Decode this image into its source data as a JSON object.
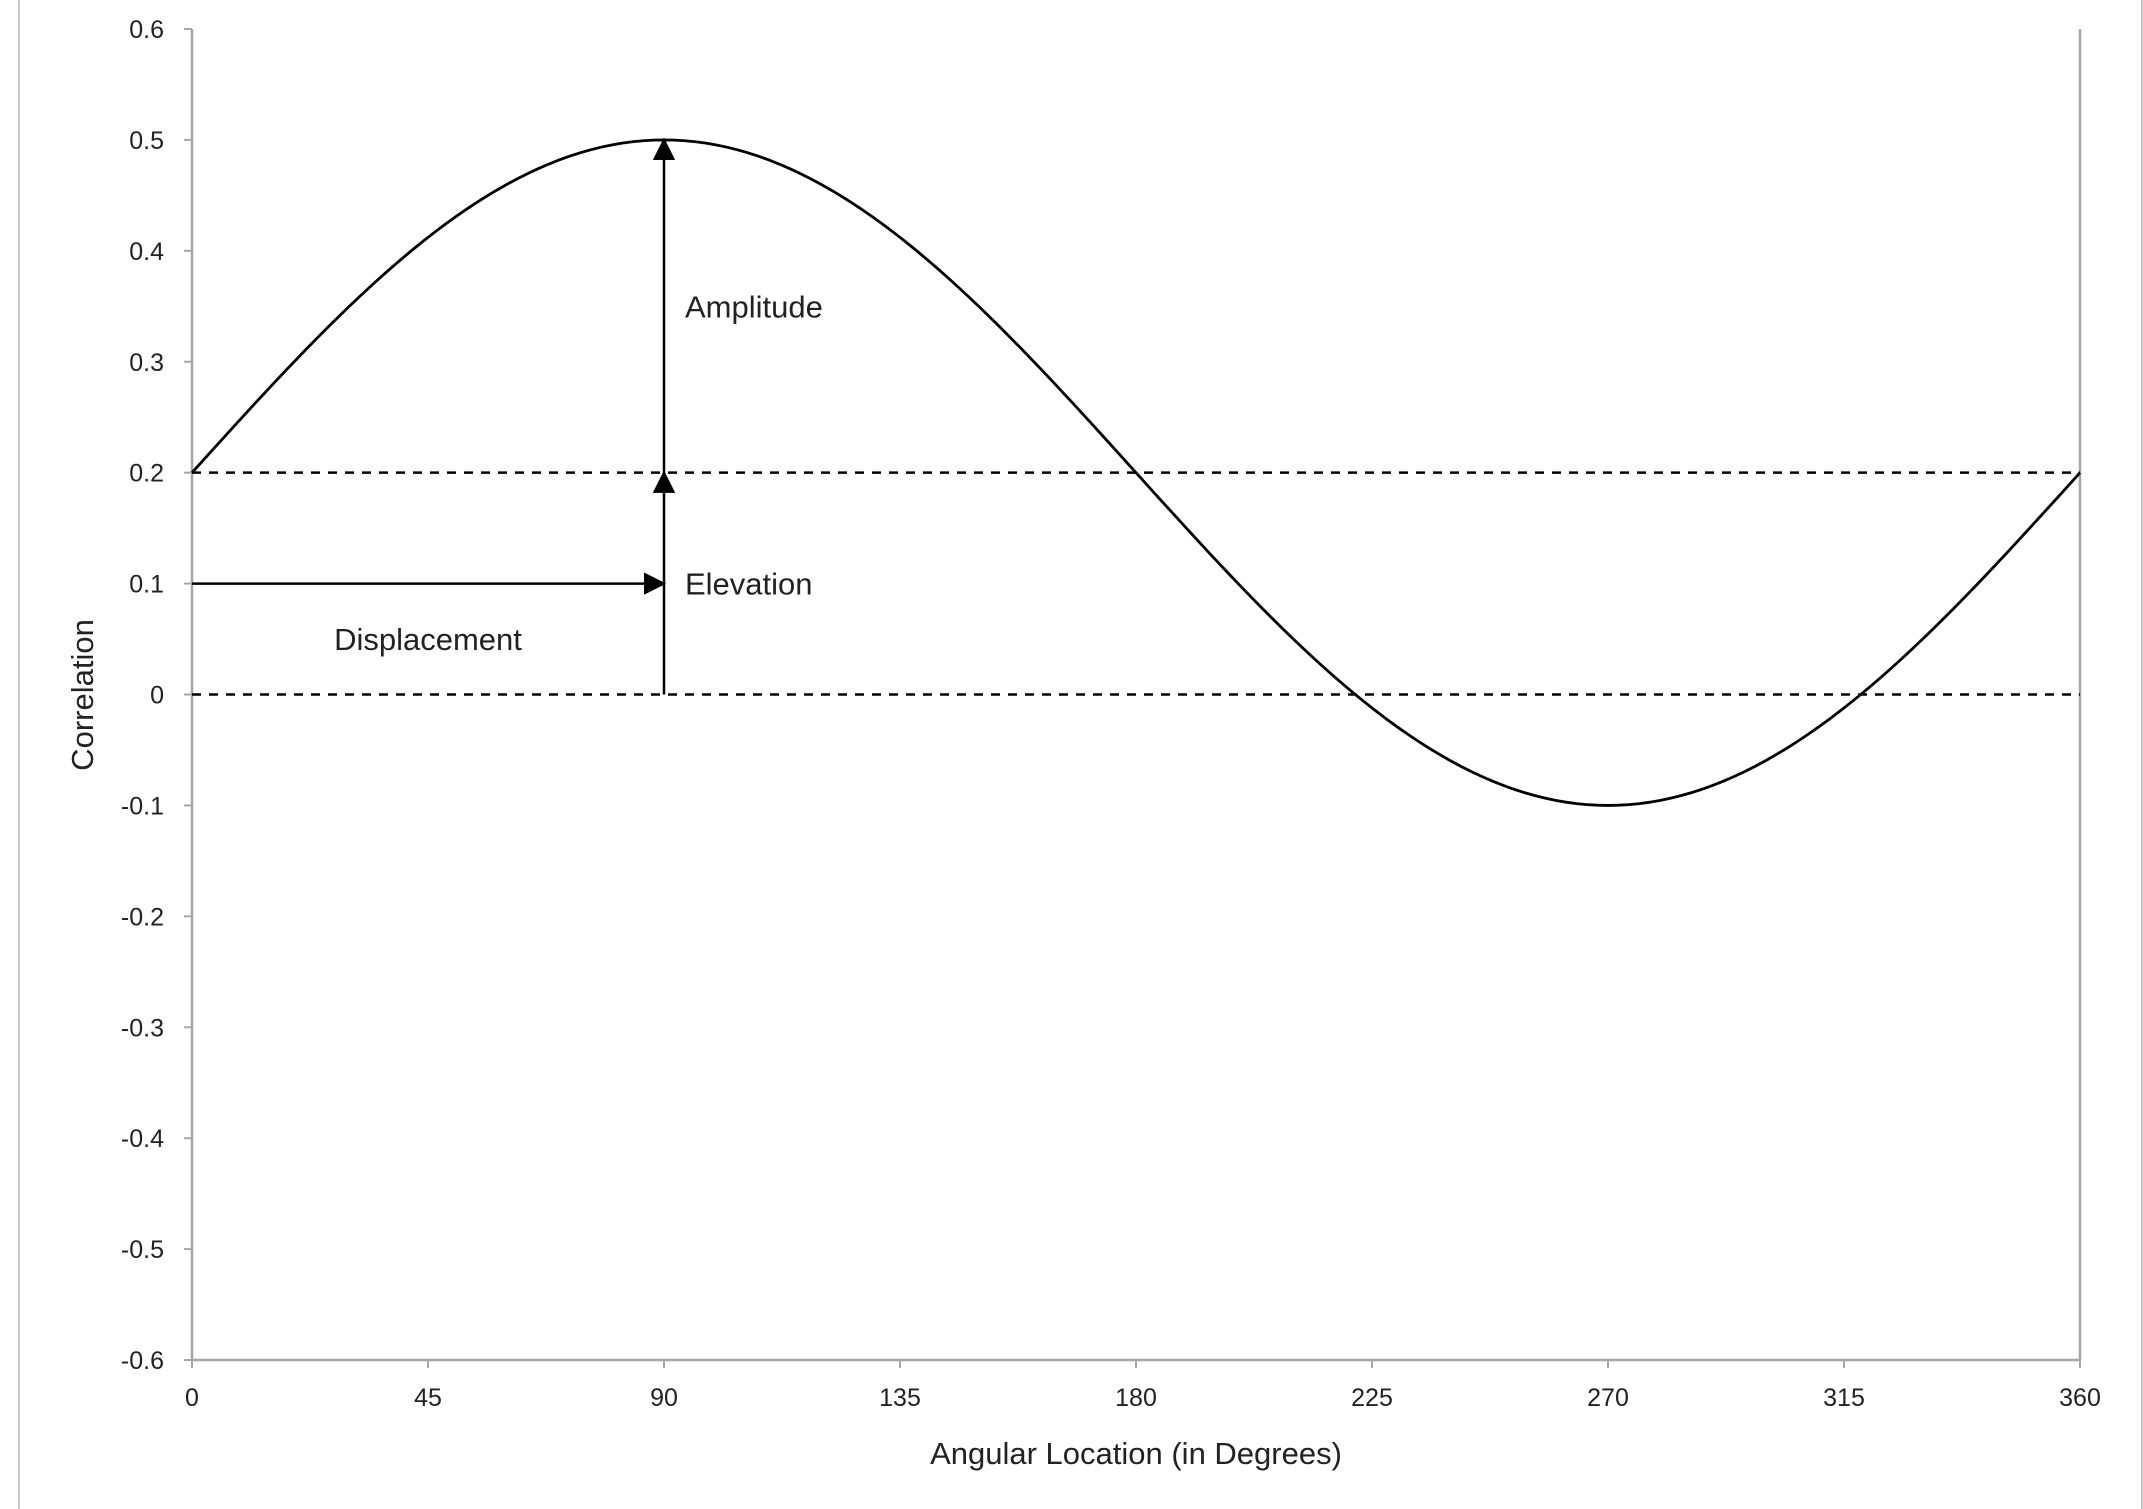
{
  "chart_data": {
    "type": "line",
    "title": "",
    "xlabel": "Angular Location (in Degrees)",
    "ylabel": "Correlation",
    "xlim": [
      0,
      360
    ],
    "ylim": [
      -0.6,
      0.6
    ],
    "xticks": [
      0,
      45,
      90,
      135,
      180,
      225,
      270,
      315,
      360
    ],
    "yticks": [
      0.6,
      0.5,
      0.4,
      0.3,
      0.2,
      0.1,
      0,
      -0.1,
      -0.2,
      -0.3,
      -0.4,
      -0.5,
      -0.6
    ],
    "xtick_labels": [
      "0",
      "45",
      "90",
      "135",
      "180",
      "225",
      "270",
      "315",
      "360"
    ],
    "ytick_labels": [
      "0.6",
      "0.5",
      "0.4",
      "0.3",
      "0.2",
      "0.1",
      "0",
      "-0.1",
      "-0.2",
      "-0.3",
      "-0.4",
      "-0.5",
      "-0.6"
    ],
    "grid": false,
    "curve": {
      "function": "0.2 + 0.3*sin(x)",
      "x": [
        0,
        30,
        60,
        90,
        120,
        150,
        180,
        210,
        240,
        270,
        300,
        330,
        360
      ],
      "y": [
        0.2,
        0.35,
        0.46,
        0.5,
        0.46,
        0.35,
        0.2,
        0.05,
        -0.06,
        -0.1,
        -0.06,
        0.05,
        0.2
      ]
    },
    "reference_lines": [
      {
        "y": 0.2,
        "style": "dashed"
      },
      {
        "y": 0,
        "style": "dashed"
      }
    ],
    "annotations": [
      {
        "text": "Amplitude",
        "x": 94,
        "y": 0.35
      },
      {
        "text": "Elevation",
        "x": 94,
        "y": 0.1
      },
      {
        "text": "Displacement",
        "x": 45,
        "y": 0.05
      }
    ],
    "arrows": [
      {
        "name": "amplitude",
        "from": [
          90,
          0.2
        ],
        "to": [
          90,
          0.5
        ]
      },
      {
        "name": "elevation",
        "from": [
          90,
          0
        ],
        "to": [
          90,
          0.2
        ]
      },
      {
        "name": "displacement",
        "from": [
          0,
          0.1
        ],
        "to": [
          90,
          0.1
        ]
      }
    ],
    "colors": {
      "curve": "#000000",
      "axis": "#a6a6a6",
      "text": "#222222"
    }
  }
}
